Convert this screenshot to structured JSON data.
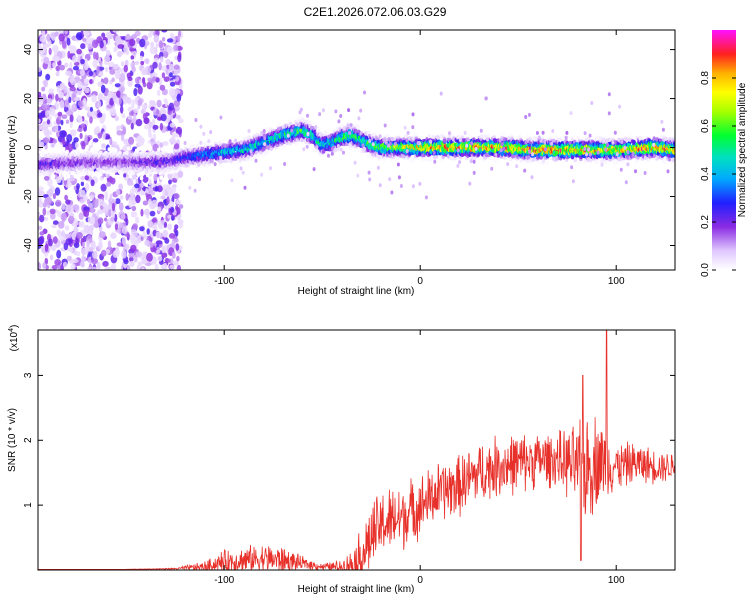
{
  "title": "C2E1.2026.072.06.03.G29",
  "chart_data": [
    {
      "type": "heatmap",
      "title": "C2E1.2026.072.06.03.G29",
      "xlabel": "Height of straight line (km)",
      "ylabel": "Frequency (Hz)",
      "xlim": [
        -195,
        130
      ],
      "ylim": [
        -50,
        48
      ],
      "xticks": [
        -100,
        0,
        100
      ],
      "xtick_labels": [
        "-100",
        "0",
        "100"
      ],
      "yticks": [
        -40,
        -20,
        0,
        20,
        40
      ],
      "ytick_labels": [
        "-40",
        "-20",
        "0",
        "20",
        "40"
      ],
      "colorbar": {
        "label": "Normalized spectral amplitude",
        "range": [
          0,
          1
        ],
        "ticks": [
          0.0,
          0.2,
          0.4,
          0.6,
          0.8
        ],
        "tick_labels": [
          "0.0",
          "0.2",
          "0.4",
          "0.6",
          "0.8"
        ]
      },
      "signal_track": {
        "description_values": "center frequency (Hz) of signal band vs height (km)",
        "x": [
          -195,
          -170,
          -150,
          -130,
          -120,
          -110,
          -100,
          -90,
          -80,
          -70,
          -60,
          -55,
          -50,
          -45,
          -40,
          -35,
          -30,
          -25,
          -20,
          -10,
          0,
          20,
          40,
          60,
          80,
          100,
          120,
          130
        ],
        "y": [
          -7,
          -6,
          -6,
          -6,
          -4,
          -3,
          -2,
          -1,
          2,
          5,
          7,
          5,
          1,
          2,
          4,
          5,
          3,
          1,
          0,
          0,
          0,
          0,
          0,
          -1,
          -1,
          -1,
          0,
          -1
        ],
        "peak_amplitude": [
          0.25,
          0.2,
          0.2,
          0.25,
          0.3,
          0.4,
          0.45,
          0.5,
          0.5,
          0.55,
          0.6,
          0.55,
          0.5,
          0.55,
          0.6,
          0.6,
          0.55,
          0.6,
          0.65,
          0.7,
          0.85,
          0.9,
          0.9,
          0.9,
          0.9,
          0.85,
          0.9,
          0.85
        ]
      },
      "noise_region_x": [
        -195,
        -122
      ]
    },
    {
      "type": "line",
      "xlabel": "Height of straight line (km)",
      "ylabel": "SNR (10 * v/v)",
      "y_multiplier_label": "(x10",
      "y_multiplier_exp": "4",
      "xlim": [
        -195,
        130
      ],
      "ylim": [
        0,
        3.7
      ],
      "xticks": [
        -100,
        0,
        100
      ],
      "xtick_labels": [
        "-100",
        "0",
        "100"
      ],
      "yticks": [
        1,
        2,
        3
      ],
      "ytick_labels": [
        "1",
        "2",
        "3"
      ],
      "color": "#e8302a",
      "envelope": {
        "x": [
          -195,
          -150,
          -125,
          -110,
          -100,
          -90,
          -80,
          -70,
          -60,
          -50,
          -40,
          -35,
          -30,
          -25,
          -20,
          -10,
          0,
          10,
          20,
          30,
          40,
          50,
          60,
          70,
          80,
          85,
          90,
          95,
          100,
          110,
          120,
          130
        ],
        "mean": [
          0.01,
          0.01,
          0.02,
          0.05,
          0.12,
          0.15,
          0.18,
          0.15,
          0.1,
          0.05,
          0.05,
          0.1,
          0.2,
          0.5,
          0.7,
          0.8,
          1.0,
          1.2,
          1.3,
          1.5,
          1.6,
          1.65,
          1.7,
          1.7,
          1.6,
          1.55,
          1.7,
          1.65,
          1.6,
          1.65,
          1.6,
          1.6
        ],
        "spread": [
          0.0,
          0.0,
          0.01,
          0.08,
          0.18,
          0.2,
          0.22,
          0.2,
          0.1,
          0.05,
          0.1,
          0.2,
          0.45,
          0.5,
          0.5,
          0.5,
          0.45,
          0.45,
          0.45,
          0.45,
          0.45,
          0.45,
          0.4,
          0.4,
          0.6,
          0.8,
          0.7,
          0.5,
          0.35,
          0.3,
          0.25,
          0.2
        ]
      },
      "peaks": [
        {
          "x": 95,
          "y": 3.7
        },
        {
          "x": 83,
          "y": 3.0
        },
        {
          "x": 82,
          "y": 0.15
        }
      ]
    }
  ]
}
